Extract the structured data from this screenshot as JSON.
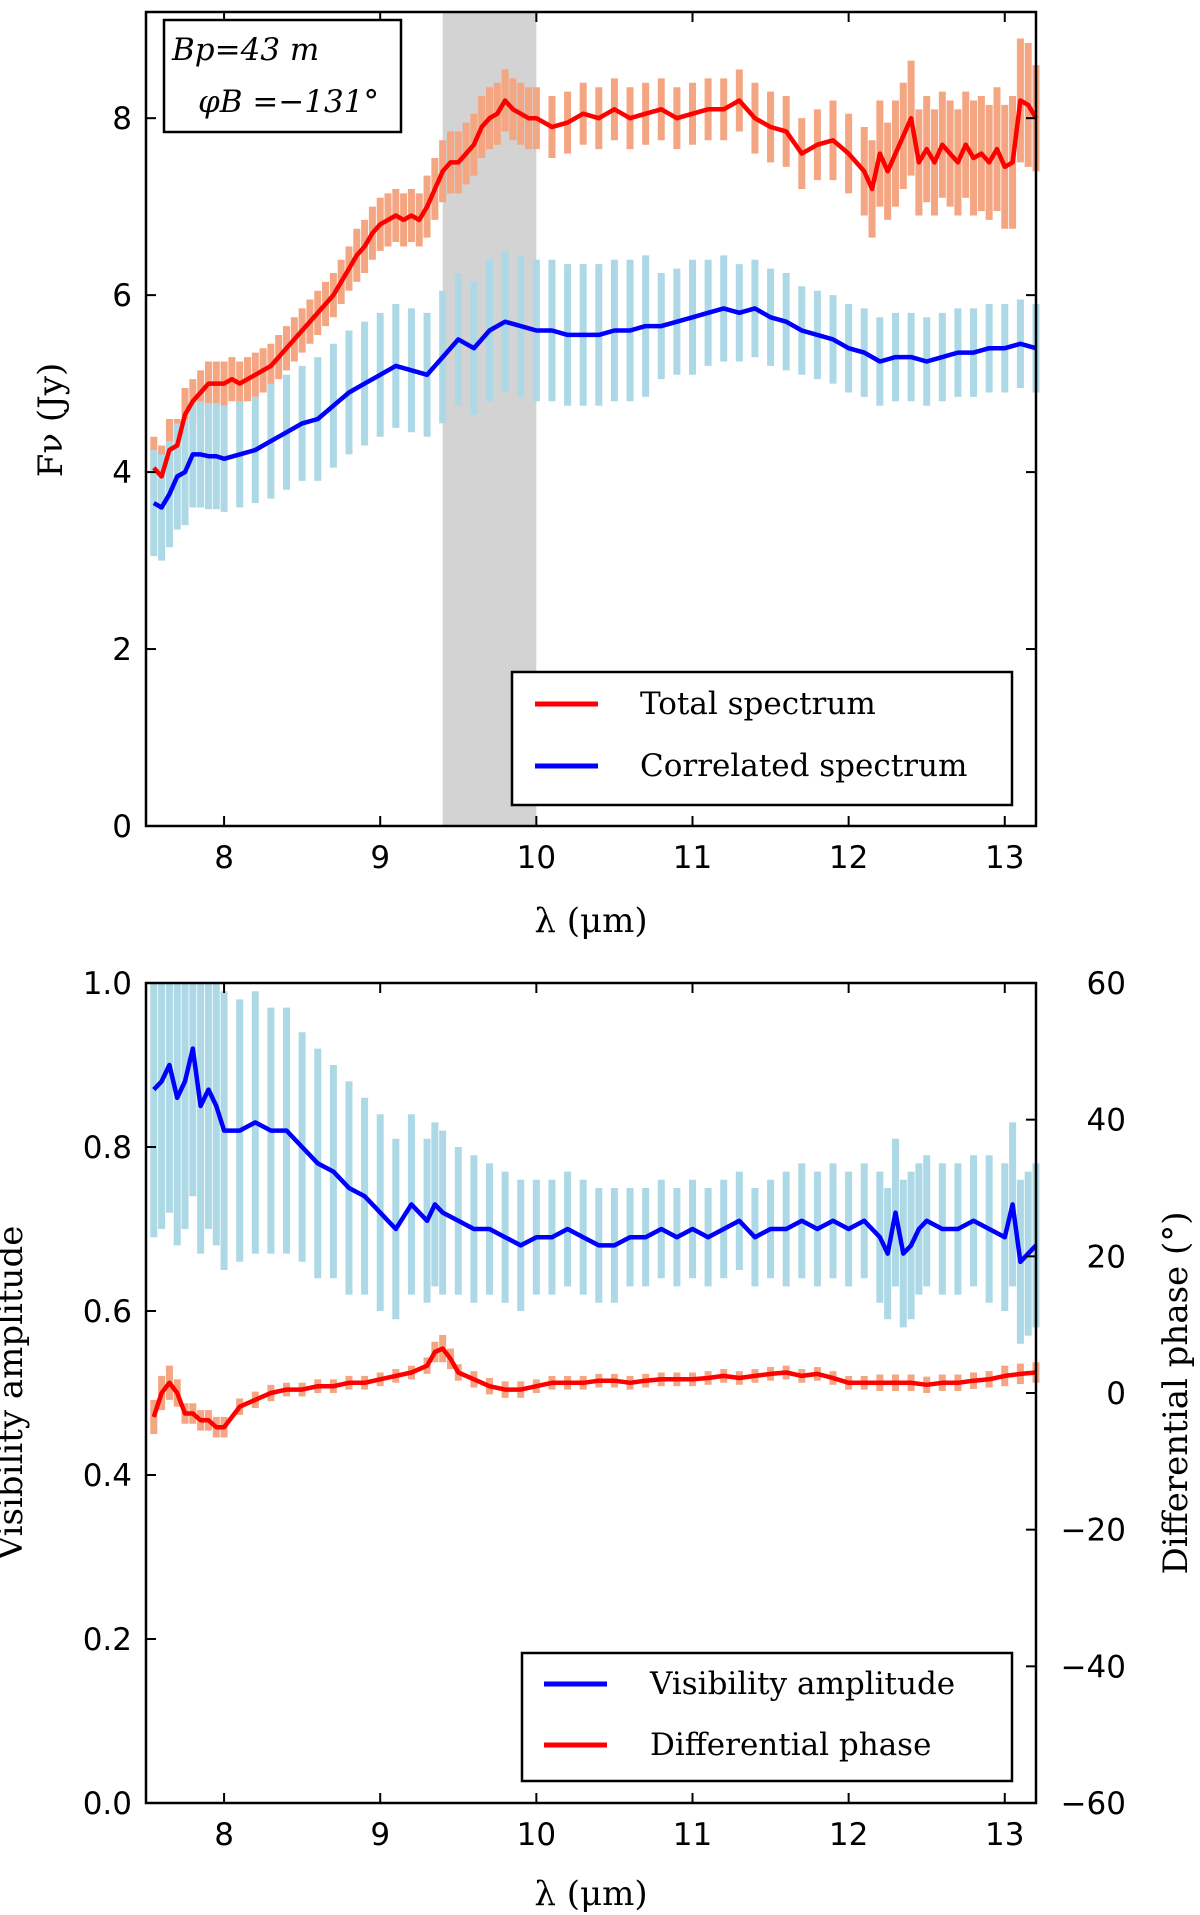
{
  "chart_data": [
    {
      "type": "line",
      "xlabel": "λ (μm)",
      "ylabel": "Fν (Jy)",
      "xlim": [
        7.5,
        13.2
      ],
      "ylim": [
        0,
        9.2
      ],
      "xticks": [
        "8",
        "9",
        "10",
        "11",
        "12",
        "13"
      ],
      "yticks": [
        "0",
        "2",
        "4",
        "6",
        "8"
      ],
      "annotation": {
        "line1": "Bp=43 m",
        "line2": "φB =−131°"
      },
      "shaded_band": [
        9.4,
        10.0
      ],
      "legend_position": "lower right",
      "series": [
        {
          "name": "Total spectrum",
          "color": "#ff0000",
          "error_color": "#f4a582",
          "x": [
            7.55,
            7.6,
            7.65,
            7.7,
            7.75,
            7.8,
            7.85,
            7.9,
            7.95,
            8.0,
            8.05,
            8.1,
            8.15,
            8.2,
            8.25,
            8.3,
            8.35,
            8.4,
            8.45,
            8.5,
            8.55,
            8.6,
            8.65,
            8.7,
            8.75,
            8.8,
            8.85,
            8.9,
            8.95,
            9.0,
            9.05,
            9.1,
            9.15,
            9.2,
            9.25,
            9.3,
            9.35,
            9.4,
            9.45,
            9.5,
            9.55,
            9.6,
            9.65,
            9.7,
            9.75,
            9.8,
            9.85,
            9.9,
            9.95,
            10.0,
            10.1,
            10.2,
            10.3,
            10.4,
            10.5,
            10.6,
            10.7,
            10.8,
            10.9,
            11.0,
            11.1,
            11.2,
            11.3,
            11.4,
            11.5,
            11.6,
            11.7,
            11.8,
            11.9,
            12.0,
            12.1,
            12.15,
            12.2,
            12.25,
            12.3,
            12.35,
            12.4,
            12.45,
            12.5,
            12.55,
            12.6,
            12.65,
            12.7,
            12.75,
            12.8,
            12.85,
            12.9,
            12.95,
            13.0,
            13.05,
            13.1,
            13.15,
            13.2
          ],
          "y": [
            4.05,
            3.95,
            4.25,
            4.3,
            4.65,
            4.8,
            4.9,
            5.0,
            5.0,
            5.0,
            5.05,
            5.0,
            5.05,
            5.1,
            5.15,
            5.2,
            5.3,
            5.4,
            5.5,
            5.6,
            5.7,
            5.8,
            5.9,
            6.0,
            6.15,
            6.3,
            6.45,
            6.55,
            6.7,
            6.8,
            6.85,
            6.9,
            6.85,
            6.9,
            6.85,
            7.0,
            7.2,
            7.4,
            7.5,
            7.5,
            7.6,
            7.7,
            7.9,
            8.0,
            8.05,
            8.2,
            8.1,
            8.05,
            8.0,
            8.0,
            7.9,
            7.95,
            8.05,
            8.0,
            8.1,
            8.0,
            8.05,
            8.1,
            8.0,
            8.05,
            8.1,
            8.1,
            8.2,
            8.0,
            7.9,
            7.85,
            7.6,
            7.7,
            7.75,
            7.6,
            7.4,
            7.2,
            7.6,
            7.4,
            7.6,
            7.8,
            8.0,
            7.5,
            7.65,
            7.5,
            7.7,
            7.6,
            7.5,
            7.7,
            7.55,
            7.6,
            7.5,
            7.65,
            7.45,
            7.5,
            8.2,
            8.15,
            8.0
          ],
          "yerr": [
            0.35,
            0.35,
            0.35,
            0.3,
            0.3,
            0.25,
            0.25,
            0.25,
            0.25,
            0.25,
            0.25,
            0.25,
            0.25,
            0.25,
            0.25,
            0.25,
            0.25,
            0.25,
            0.25,
            0.25,
            0.25,
            0.25,
            0.25,
            0.25,
            0.25,
            0.25,
            0.3,
            0.3,
            0.3,
            0.3,
            0.3,
            0.3,
            0.3,
            0.3,
            0.3,
            0.35,
            0.35,
            0.35,
            0.35,
            0.35,
            0.35,
            0.35,
            0.35,
            0.35,
            0.35,
            0.35,
            0.35,
            0.35,
            0.35,
            0.35,
            0.35,
            0.35,
            0.35,
            0.35,
            0.35,
            0.35,
            0.35,
            0.35,
            0.35,
            0.35,
            0.35,
            0.35,
            0.35,
            0.4,
            0.4,
            0.4,
            0.4,
            0.4,
            0.45,
            0.45,
            0.5,
            0.55,
            0.6,
            0.55,
            0.6,
            0.6,
            0.65,
            0.6,
            0.6,
            0.6,
            0.6,
            0.6,
            0.6,
            0.6,
            0.65,
            0.65,
            0.65,
            0.7,
            0.7,
            0.75,
            0.7,
            0.7,
            0.6
          ]
        },
        {
          "name": "Correlated spectrum",
          "color": "#0000ff",
          "error_color": "#add8e6",
          "x": [
            7.55,
            7.6,
            7.65,
            7.7,
            7.75,
            7.8,
            7.85,
            7.9,
            7.95,
            8.0,
            8.1,
            8.2,
            8.3,
            8.4,
            8.5,
            8.6,
            8.7,
            8.8,
            8.9,
            9.0,
            9.1,
            9.2,
            9.3,
            9.4,
            9.5,
            9.6,
            9.7,
            9.8,
            9.9,
            10.0,
            10.1,
            10.2,
            10.3,
            10.4,
            10.5,
            10.6,
            10.7,
            10.8,
            10.9,
            11.0,
            11.1,
            11.2,
            11.3,
            11.4,
            11.5,
            11.6,
            11.7,
            11.8,
            11.9,
            12.0,
            12.1,
            12.2,
            12.3,
            12.4,
            12.5,
            12.6,
            12.7,
            12.8,
            12.9,
            13.0,
            13.1,
            13.2
          ],
          "y": [
            3.65,
            3.6,
            3.75,
            3.95,
            4.0,
            4.2,
            4.2,
            4.18,
            4.18,
            4.15,
            4.2,
            4.25,
            4.35,
            4.45,
            4.55,
            4.6,
            4.75,
            4.9,
            5.0,
            5.1,
            5.2,
            5.15,
            5.1,
            5.3,
            5.5,
            5.4,
            5.6,
            5.7,
            5.65,
            5.6,
            5.6,
            5.55,
            5.55,
            5.55,
            5.6,
            5.6,
            5.65,
            5.65,
            5.7,
            5.75,
            5.8,
            5.85,
            5.8,
            5.85,
            5.75,
            5.7,
            5.6,
            5.55,
            5.5,
            5.4,
            5.35,
            5.25,
            5.3,
            5.3,
            5.25,
            5.3,
            5.35,
            5.35,
            5.4,
            5.4,
            5.45,
            5.4
          ],
          "yerr": [
            0.6,
            0.6,
            0.6,
            0.6,
            0.6,
            0.6,
            0.6,
            0.6,
            0.6,
            0.6,
            0.6,
            0.6,
            0.65,
            0.65,
            0.65,
            0.7,
            0.7,
            0.7,
            0.7,
            0.7,
            0.7,
            0.7,
            0.7,
            0.75,
            0.75,
            0.75,
            0.8,
            0.8,
            0.8,
            0.8,
            0.8,
            0.8,
            0.8,
            0.8,
            0.8,
            0.8,
            0.8,
            0.6,
            0.6,
            0.65,
            0.6,
            0.6,
            0.55,
            0.55,
            0.55,
            0.55,
            0.5,
            0.5,
            0.5,
            0.5,
            0.5,
            0.5,
            0.5,
            0.5,
            0.5,
            0.5,
            0.5,
            0.5,
            0.5,
            0.5,
            0.5,
            0.5
          ]
        }
      ]
    },
    {
      "type": "line",
      "xlabel": "λ (μm)",
      "ylabel": "Visibility amplitude",
      "y2label": "Differential phase (°)",
      "xlim": [
        7.5,
        13.2
      ],
      "ylim": [
        0,
        1.0
      ],
      "y2lim": [
        -60,
        60
      ],
      "xticks": [
        "8",
        "9",
        "10",
        "11",
        "12",
        "13"
      ],
      "yticks": [
        "0.0",
        "0.2",
        "0.4",
        "0.6",
        "0.8",
        "1.0"
      ],
      "y2ticks": [
        "−60",
        "−40",
        "−20",
        "0",
        "20",
        "40",
        "60"
      ],
      "legend_position": "lower right",
      "series": [
        {
          "name": "Visibility amplitude",
          "axis": "left",
          "color": "#0000ff",
          "error_color": "#add8e6",
          "x": [
            7.55,
            7.6,
            7.65,
            7.7,
            7.75,
            7.8,
            7.85,
            7.9,
            7.95,
            8.0,
            8.1,
            8.2,
            8.3,
            8.4,
            8.5,
            8.6,
            8.7,
            8.8,
            8.9,
            9.0,
            9.1,
            9.2,
            9.3,
            9.35,
            9.4,
            9.5,
            9.6,
            9.7,
            9.8,
            9.9,
            10.0,
            10.1,
            10.2,
            10.3,
            10.4,
            10.5,
            10.6,
            10.7,
            10.8,
            10.9,
            11.0,
            11.1,
            11.2,
            11.3,
            11.4,
            11.5,
            11.6,
            11.7,
            11.8,
            11.9,
            12.0,
            12.1,
            12.2,
            12.25,
            12.3,
            12.35,
            12.4,
            12.45,
            12.5,
            12.6,
            12.7,
            12.8,
            12.9,
            13.0,
            13.05,
            13.1,
            13.15,
            13.2
          ],
          "y": [
            0.87,
            0.88,
            0.9,
            0.86,
            0.88,
            0.92,
            0.85,
            0.87,
            0.85,
            0.82,
            0.82,
            0.83,
            0.82,
            0.82,
            0.8,
            0.78,
            0.77,
            0.75,
            0.74,
            0.72,
            0.7,
            0.73,
            0.71,
            0.73,
            0.72,
            0.71,
            0.7,
            0.7,
            0.69,
            0.68,
            0.69,
            0.69,
            0.7,
            0.69,
            0.68,
            0.68,
            0.69,
            0.69,
            0.7,
            0.69,
            0.7,
            0.69,
            0.7,
            0.71,
            0.69,
            0.7,
            0.7,
            0.71,
            0.7,
            0.71,
            0.7,
            0.71,
            0.69,
            0.67,
            0.72,
            0.67,
            0.68,
            0.7,
            0.71,
            0.7,
            0.7,
            0.71,
            0.7,
            0.69,
            0.73,
            0.66,
            0.67,
            0.68
          ],
          "yerr": [
            0.18,
            0.18,
            0.18,
            0.18,
            0.18,
            0.18,
            0.18,
            0.17,
            0.17,
            0.17,
            0.16,
            0.16,
            0.15,
            0.15,
            0.14,
            0.14,
            0.13,
            0.13,
            0.12,
            0.12,
            0.11,
            0.11,
            0.1,
            0.1,
            0.1,
            0.09,
            0.09,
            0.08,
            0.08,
            0.08,
            0.07,
            0.07,
            0.07,
            0.07,
            0.07,
            0.07,
            0.06,
            0.06,
            0.06,
            0.06,
            0.06,
            0.06,
            0.06,
            0.06,
            0.06,
            0.06,
            0.07,
            0.07,
            0.07,
            0.07,
            0.07,
            0.07,
            0.08,
            0.08,
            0.09,
            0.09,
            0.09,
            0.08,
            0.08,
            0.08,
            0.08,
            0.08,
            0.09,
            0.09,
            0.1,
            0.1,
            0.1,
            0.1
          ]
        },
        {
          "name": "Differential phase",
          "axis": "right",
          "color": "#ff0000",
          "error_color": "#f4a582",
          "x": [
            7.55,
            7.6,
            7.65,
            7.7,
            7.75,
            7.8,
            7.85,
            7.9,
            7.95,
            8.0,
            8.1,
            8.2,
            8.3,
            8.4,
            8.5,
            8.6,
            8.7,
            8.8,
            8.9,
            9.0,
            9.1,
            9.2,
            9.3,
            9.35,
            9.4,
            9.45,
            9.5,
            9.6,
            9.7,
            9.8,
            9.9,
            10.0,
            10.1,
            10.2,
            10.3,
            10.4,
            10.5,
            10.6,
            10.7,
            10.8,
            10.9,
            11.0,
            11.1,
            11.2,
            11.3,
            11.4,
            11.5,
            11.6,
            11.7,
            11.8,
            11.9,
            12.0,
            12.1,
            12.2,
            12.3,
            12.4,
            12.5,
            12.6,
            12.7,
            12.8,
            12.9,
            13.0,
            13.1,
            13.2
          ],
          "y": [
            -3.5,
            0,
            1.5,
            0,
            -3,
            -3,
            -4,
            -4,
            -5,
            -5,
            -2,
            -1,
            0,
            0.5,
            0.5,
            1,
            1,
            1.5,
            1.5,
            2,
            2.5,
            3,
            4,
            6,
            6.5,
            5,
            3,
            2,
            1,
            0.5,
            0.5,
            1,
            1.5,
            1.5,
            1.5,
            1.8,
            1.8,
            1.5,
            1.8,
            2,
            2,
            2,
            2.2,
            2.5,
            2.2,
            2.5,
            2.8,
            3,
            2.5,
            2.8,
            2.2,
            1.5,
            1.5,
            1.5,
            1.5,
            1.5,
            1.2,
            1.5,
            1.5,
            1.8,
            2,
            2.5,
            2.8,
            3
          ],
          "yerr": [
            2.5,
            2.5,
            2.5,
            2,
            1.5,
            1.5,
            1.5,
            1.5,
            1.5,
            1.5,
            1.2,
            1.2,
            1.2,
            1,
            1,
            1,
            1,
            1,
            1,
            1,
            1,
            1,
            1.2,
            1.5,
            2,
            1.5,
            1.2,
            1.2,
            1.2,
            1.2,
            1.2,
            1,
            1,
            1,
            1,
            1,
            1,
            1,
            1,
            1,
            1,
            1,
            1,
            1,
            1,
            1,
            1,
            1,
            1,
            1,
            1,
            1,
            1,
            1.2,
            1.2,
            1.2,
            1.2,
            1.2,
            1.2,
            1.2,
            1.2,
            1.5,
            1.5,
            1.5
          ]
        }
      ]
    }
  ]
}
